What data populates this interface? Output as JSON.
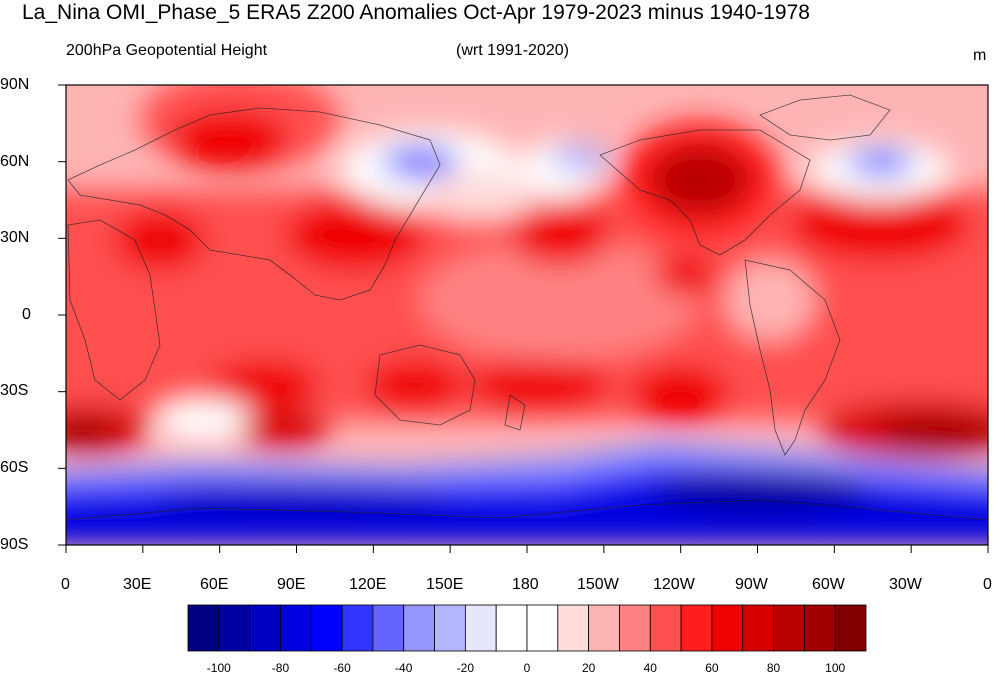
{
  "title": "La_Nina OMI_Phase_5 ERA5 Z200 Anomalies Oct-Apr 1979-2023 minus 1940-1978",
  "left_subtitle": "200hPa Geopotential Height",
  "center_subtitle": "(wrt 1991-2020)",
  "units": "m",
  "lat_labels": [
    "90N",
    "60N",
    "30N",
    "0",
    "30S",
    "60S",
    "90S"
  ],
  "lon_labels": [
    "0",
    "30E",
    "60E",
    "90E",
    "120E",
    "150E",
    "180",
    "150W",
    "120W",
    "90W",
    "60W",
    "30W",
    "0"
  ],
  "colorbar": {
    "tick_labels": [
      "-100",
      "-80",
      "-60",
      "-40",
      "-20",
      "0",
      "20",
      "40",
      "60",
      "80",
      "100"
    ],
    "colors": [
      "#000080",
      "#0000a0",
      "#0000c0",
      "#0000e0",
      "#0000ff",
      "#3333ff",
      "#6464ff",
      "#9696ff",
      "#b4b4ff",
      "#e6e6ff",
      "#ffffff",
      "#ffffff",
      "#ffdcdc",
      "#ffb4b4",
      "#ff8282",
      "#ff5050",
      "#ff1e1e",
      "#f00000",
      "#d70000",
      "#b90000",
      "#a00000",
      "#800000"
    ]
  },
  "background_color": "#ffb4b4"
}
